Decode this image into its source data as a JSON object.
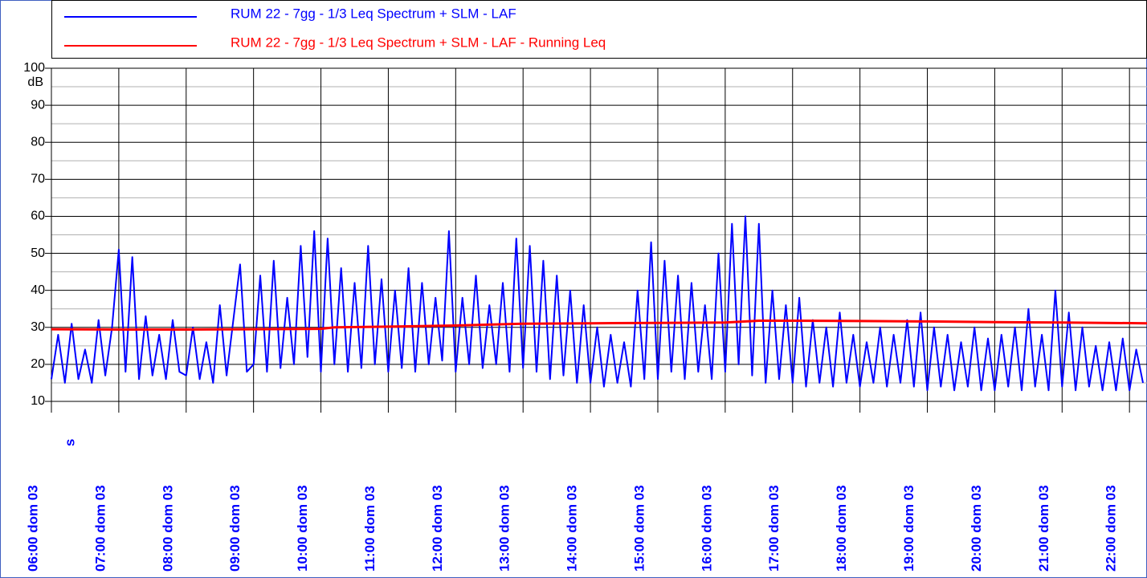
{
  "chart_data": {
    "type": "line",
    "x_label": "s",
    "y_label": "dB",
    "xlim": [
      6,
      22.26
    ],
    "ylim": [
      10,
      100
    ],
    "xticks": [
      {
        "value": 6,
        "label": "06:00 dom 03"
      },
      {
        "value": 7,
        "label": "07:00 dom 03"
      },
      {
        "value": 8,
        "label": "08:00 dom 03"
      },
      {
        "value": 9,
        "label": "09:00 dom 03"
      },
      {
        "value": 10,
        "label": "10:00 dom 03"
      },
      {
        "value": 11,
        "label": "11:00 dom 03"
      },
      {
        "value": 12,
        "label": "12:00 dom 03"
      },
      {
        "value": 13,
        "label": "13:00 dom 03"
      },
      {
        "value": 14,
        "label": "14:00 dom 03"
      },
      {
        "value": 15,
        "label": "15:00 dom 03"
      },
      {
        "value": 16,
        "label": "16:00 dom 03"
      },
      {
        "value": 17,
        "label": "17:00 dom 03"
      },
      {
        "value": 18,
        "label": "18:00 dom 03"
      },
      {
        "value": 19,
        "label": "19:00 dom 03"
      },
      {
        "value": 20,
        "label": "20:00 dom 03"
      },
      {
        "value": 21,
        "label": "21:00 dom 03"
      },
      {
        "value": 22,
        "label": "22:00 dom 03"
      }
    ],
    "yticks": [
      10,
      20,
      30,
      40,
      50,
      60,
      70,
      80,
      90,
      100
    ],
    "yminorticks": [
      15,
      25,
      35,
      45,
      55,
      65,
      75,
      85,
      95
    ],
    "grid": true,
    "legend": "top",
    "series": [
      {
        "name": "RUM 22 - 7gg - 1/3 Leq Spectrum + SLM - LAF",
        "color": "#0000ff",
        "x": [
          6.0,
          6.1,
          6.2,
          6.3,
          6.4,
          6.5,
          6.6,
          6.7,
          6.8,
          6.9,
          7.0,
          7.1,
          7.2,
          7.3,
          7.4,
          7.5,
          7.6,
          7.7,
          7.8,
          7.9,
          8.0,
          8.1,
          8.2,
          8.3,
          8.4,
          8.5,
          8.6,
          8.7,
          8.8,
          8.9,
          9.0,
          9.1,
          9.2,
          9.3,
          9.4,
          9.5,
          9.6,
          9.7,
          9.8,
          9.9,
          10.0,
          10.1,
          10.2,
          10.3,
          10.4,
          10.5,
          10.6,
          10.7,
          10.8,
          10.9,
          11.0,
          11.1,
          11.2,
          11.3,
          11.4,
          11.5,
          11.6,
          11.7,
          11.8,
          11.9,
          12.0,
          12.1,
          12.2,
          12.3,
          12.4,
          12.5,
          12.6,
          12.7,
          12.8,
          12.9,
          13.0,
          13.1,
          13.2,
          13.3,
          13.4,
          13.5,
          13.6,
          13.7,
          13.8,
          13.9,
          14.0,
          14.1,
          14.2,
          14.3,
          14.4,
          14.5,
          14.6,
          14.7,
          14.8,
          14.9,
          15.0,
          15.1,
          15.2,
          15.3,
          15.4,
          15.5,
          15.6,
          15.7,
          15.8,
          15.9,
          16.0,
          16.1,
          16.2,
          16.3,
          16.4,
          16.5,
          16.6,
          16.7,
          16.8,
          16.9,
          17.0,
          17.1,
          17.2,
          17.3,
          17.4,
          17.5,
          17.6,
          17.7,
          17.8,
          17.9,
          18.0,
          18.1,
          18.2,
          18.3,
          18.4,
          18.5,
          18.6,
          18.7,
          18.8,
          18.9,
          19.0,
          19.1,
          19.2,
          19.3,
          19.4,
          19.5,
          19.6,
          19.7,
          19.8,
          19.9,
          20.0,
          20.1,
          20.2,
          20.3,
          20.4,
          20.5,
          20.6,
          20.7,
          20.8,
          20.9,
          21.0,
          21.1,
          21.2,
          21.3,
          21.4,
          21.5,
          21.6,
          21.7,
          21.8,
          21.9,
          22.0,
          22.1,
          22.2
        ],
        "values": [
          16,
          28,
          15,
          31,
          16,
          24,
          15,
          32,
          17,
          30,
          51,
          18,
          49,
          16,
          33,
          17,
          28,
          16,
          32,
          18,
          17,
          30,
          16,
          26,
          15,
          36,
          17,
          32,
          47,
          18,
          20,
          44,
          18,
          48,
          19,
          38,
          20,
          52,
          22,
          56,
          18,
          54,
          20,
          46,
          18,
          42,
          19,
          52,
          20,
          43,
          18,
          40,
          19,
          46,
          18,
          42,
          20,
          38,
          21,
          56,
          18,
          38,
          20,
          44,
          19,
          36,
          20,
          42,
          18,
          54,
          19,
          52,
          18,
          48,
          16,
          44,
          17,
          40,
          15,
          36,
          15,
          30,
          14,
          28,
          15,
          26,
          14,
          40,
          16,
          53,
          16,
          48,
          18,
          44,
          16,
          42,
          18,
          36,
          16,
          50,
          18,
          58,
          20,
          60,
          17,
          58,
          15,
          40,
          16,
          36,
          15,
          38,
          14,
          32,
          15,
          30,
          14,
          34,
          15,
          28,
          14,
          26,
          15,
          30,
          14,
          28,
          15,
          32,
          14,
          34,
          13,
          30,
          14,
          28,
          13,
          26,
          14,
          30,
          13,
          27,
          13,
          28,
          14,
          30,
          13,
          35,
          14,
          28,
          13,
          40,
          14,
          34,
          13,
          30,
          14,
          25,
          13,
          26,
          13,
          27,
          13,
          24,
          15
        ]
      },
      {
        "name": "RUM 22 - 7gg - 1/3 Leq Spectrum + SLM - LAF - Running Leq",
        "color": "#ff0000",
        "x": [
          6,
          7,
          8,
          9,
          10,
          10.2,
          11,
          12,
          13,
          14,
          15,
          16,
          16.5,
          17,
          18,
          19,
          20,
          21,
          22.26
        ],
        "values": [
          29.5,
          29.4,
          29.4,
          29.5,
          29.6,
          30,
          30.2,
          30.5,
          31,
          31.1,
          31.2,
          31.3,
          31.8,
          31.8,
          31.7,
          31.6,
          31.4,
          31.3,
          31.1
        ]
      }
    ]
  }
}
